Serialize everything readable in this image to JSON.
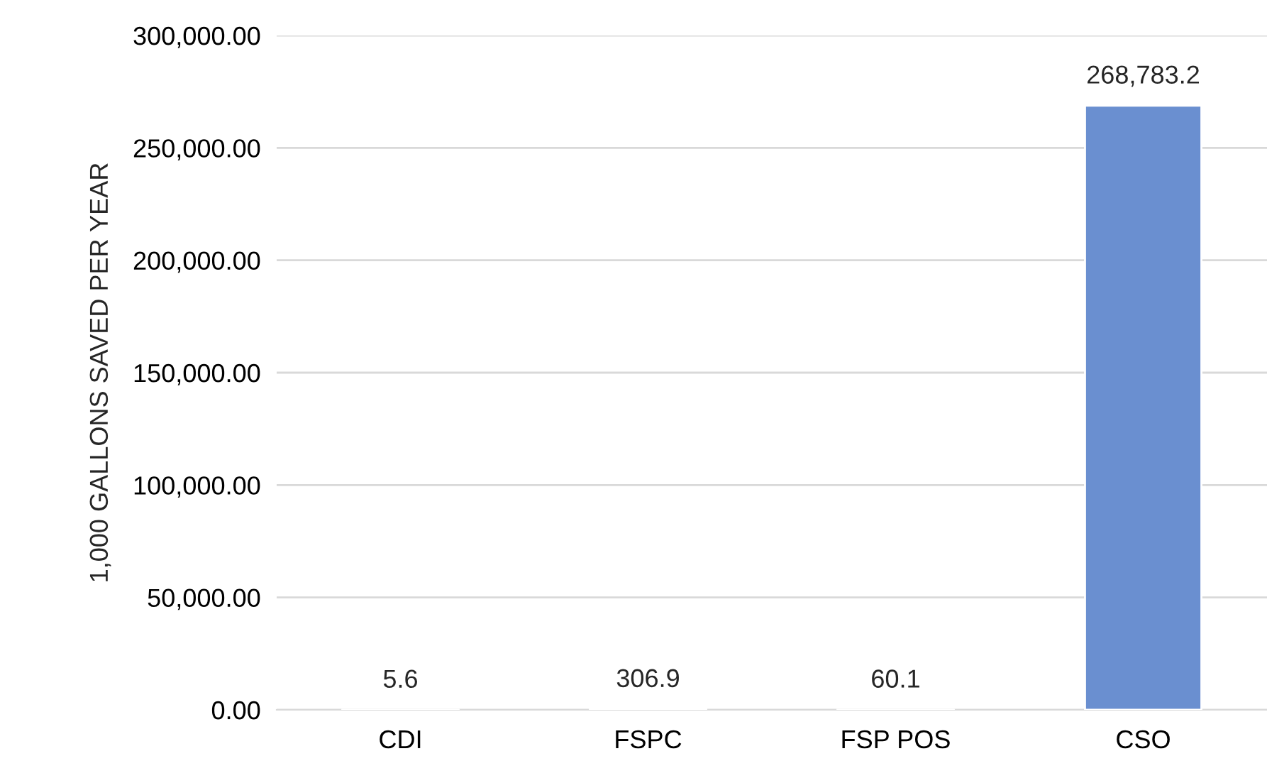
{
  "chart_data": {
    "type": "bar",
    "ylabel": "1,000 GALLONS SAVED PER YEAR",
    "categories": [
      "CDI",
      "FSPC",
      "FSP POS",
      "CSO"
    ],
    "values": [
      5.6,
      306.9,
      60.1,
      268783.2
    ],
    "value_labels": [
      "5.6",
      "306.9",
      "60.1",
      "268,783.2"
    ],
    "color": "#6a8fd0",
    "ylim": [
      0,
      300000
    ],
    "yticks": [
      {
        "value": 0,
        "label": "0.00"
      },
      {
        "value": 50000,
        "label": "50,000.00"
      },
      {
        "value": 100000,
        "label": "100,000.00"
      },
      {
        "value": 150000,
        "label": "150,000.00"
      },
      {
        "value": 200000,
        "label": "200,000.00"
      },
      {
        "value": 250000,
        "label": "250,000.00"
      },
      {
        "value": 300000,
        "label": "300,000.00"
      }
    ],
    "grid": "y",
    "legend": false
  }
}
